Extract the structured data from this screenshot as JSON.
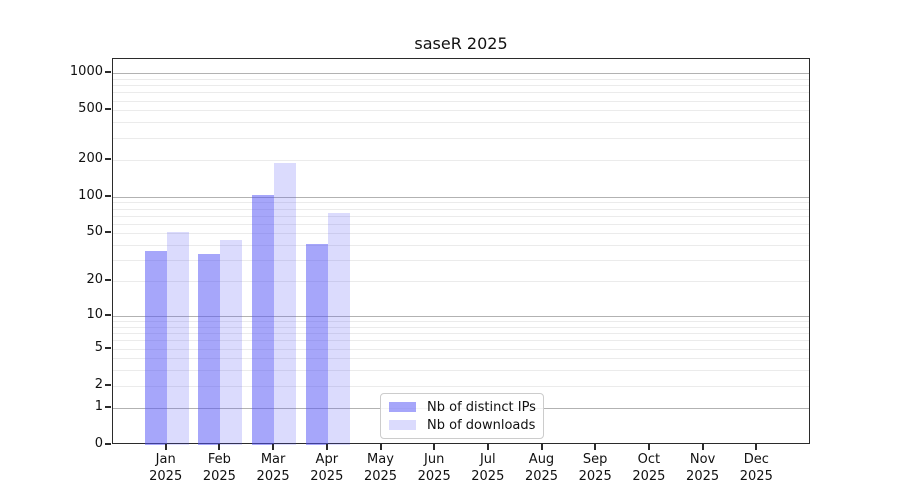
{
  "chart_data": {
    "type": "bar",
    "title": "saseR 2025",
    "year": "2025",
    "months": [
      "Jan",
      "Feb",
      "Mar",
      "Apr",
      "May",
      "Jun",
      "Jul",
      "Aug",
      "Sep",
      "Oct",
      "Nov",
      "Dec"
    ],
    "series": [
      {
        "name": "Nb of distinct IPs",
        "color": "#5555F5",
        "opacity": 0.52,
        "values": [
          36,
          34,
          104,
          41,
          0,
          0,
          0,
          0,
          0,
          0,
          0,
          0
        ]
      },
      {
        "name": "Nb of downloads",
        "color": "#5555F5",
        "opacity": 0.21,
        "values": [
          51,
          44,
          186,
          74,
          0,
          0,
          0,
          0,
          0,
          0,
          0,
          0
        ]
      }
    ],
    "yscale": "log1p",
    "ylim": [
      0,
      1300
    ],
    "yticks": [
      0,
      1,
      2,
      5,
      10,
      20,
      50,
      100,
      200,
      500,
      1000
    ],
    "gridlines_major": [
      1,
      10,
      100,
      1000
    ],
    "gridlines_minor": [
      2,
      3,
      4,
      5,
      6,
      7,
      8,
      9,
      20,
      30,
      40,
      50,
      60,
      70,
      80,
      90,
      200,
      300,
      400,
      500,
      600,
      700,
      800,
      900
    ],
    "legend_position": "lower center",
    "grid": "on",
    "colors": {
      "grid_major": "#b2b2b2",
      "grid_minor": "#ebebeb",
      "frame": "#2b2b2b",
      "text": "#111111"
    }
  }
}
